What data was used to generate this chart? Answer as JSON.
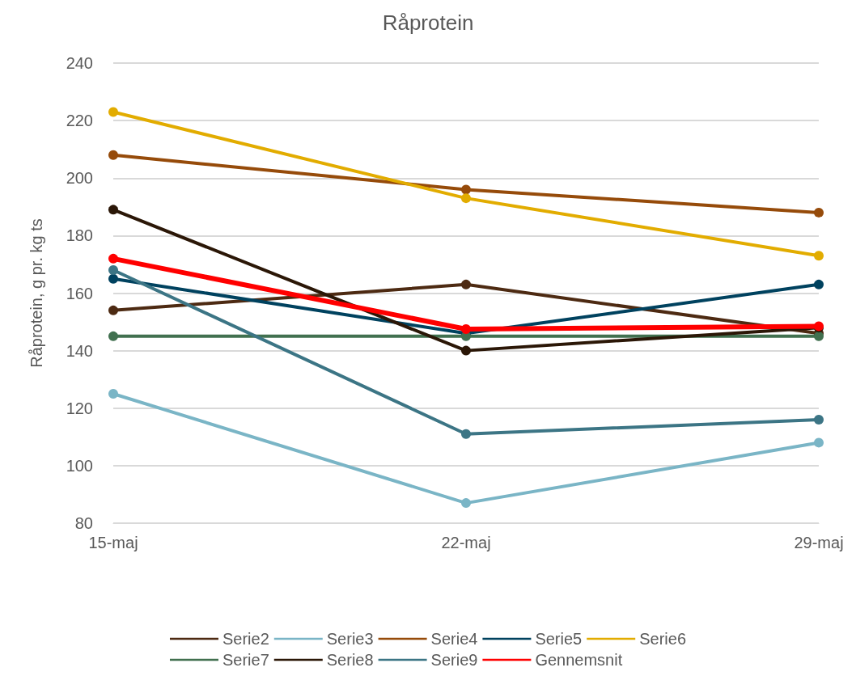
{
  "chart_data": {
    "type": "line",
    "title": "Råprotein",
    "ylabel": "Råprotein, g pr. kg ts",
    "categories": [
      "15-maj",
      "22-maj",
      "29-maj"
    ],
    "ylim": [
      80,
      240
    ],
    "yticks": [
      80,
      100,
      120,
      140,
      160,
      180,
      200,
      220,
      240
    ],
    "grid": "y",
    "legend": "bottom",
    "marker": "circle",
    "line_style": "solid",
    "series": [
      {
        "name": "Serie2",
        "color": "#4d2a12",
        "values": [
          154,
          163,
          146
        ]
      },
      {
        "name": "Serie3",
        "color": "#7ab5c6",
        "values": [
          125,
          87,
          108
        ]
      },
      {
        "name": "Serie4",
        "color": "#964b0a",
        "values": [
          208,
          196,
          188
        ]
      },
      {
        "name": "Serie5",
        "color": "#00425f",
        "values": [
          165,
          146,
          163
        ]
      },
      {
        "name": "Serie6",
        "color": "#e2ac00",
        "values": [
          223,
          193,
          173
        ]
      },
      {
        "name": "Serie7",
        "color": "#41704f",
        "values": [
          145,
          145,
          145
        ]
      },
      {
        "name": "Serie8",
        "color": "#2b1707",
        "values": [
          189,
          140,
          148
        ]
      },
      {
        "name": "Serie9",
        "color": "#3c7585",
        "values": [
          168,
          111,
          116
        ]
      },
      {
        "name": "Gennemsnit",
        "color": "#ff0000",
        "values": [
          172,
          147.5,
          148.5
        ]
      }
    ]
  }
}
